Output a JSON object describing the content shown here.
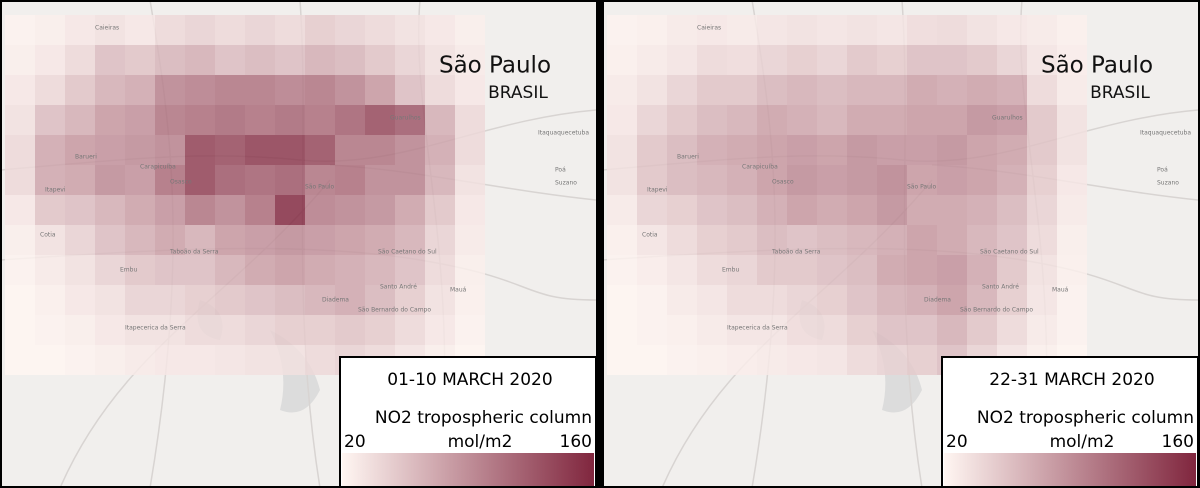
{
  "map_labels": [
    "Barueri",
    "Carapicuíba",
    "Osasco",
    "Itapevi",
    "Cotia",
    "Embu",
    "Taboão da Serra",
    "São Paulo",
    "São Caetano do Sul",
    "Santo André",
    "Diadema",
    "São Bernardo do Campo",
    "Mauá",
    "Poá",
    "Suzano",
    "Itaquaquecetuba",
    "Guarulhos",
    "Itapecerica da Serra",
    "Caieiras"
  ],
  "panels": [
    {
      "place": "São Paulo",
      "country": "BRASIL",
      "period": "01-10 MARCH 2020",
      "legend": {
        "title": "NO2 tropospheric column",
        "unit": "mol/m2",
        "min": 20,
        "max": 160
      },
      "grid": [
        [
          22,
          25,
          30,
          35,
          30,
          40,
          45,
          40,
          45,
          40,
          50,
          45,
          40,
          35,
          30,
          25
        ],
        [
          25,
          30,
          40,
          60,
          55,
          65,
          70,
          60,
          65,
          60,
          70,
          65,
          55,
          45,
          35,
          28
        ],
        [
          30,
          40,
          55,
          70,
          75,
          100,
          105,
          110,
          110,
          105,
          110,
          100,
          85,
          60,
          40,
          30
        ],
        [
          35,
          60,
          70,
          85,
          90,
          110,
          115,
          120,
          115,
          120,
          115,
          125,
          140,
          130,
          70,
          40
        ],
        [
          40,
          75,
          85,
          90,
          95,
          100,
          145,
          140,
          150,
          150,
          140,
          110,
          110,
          100,
          75,
          40
        ],
        [
          40,
          75,
          80,
          95,
          90,
          115,
          145,
          130,
          125,
          130,
          110,
          115,
          100,
          100,
          70,
          35
        ],
        [
          30,
          55,
          60,
          70,
          80,
          90,
          110,
          100,
          115,
          160,
          105,
          100,
          95,
          80,
          55,
          30
        ],
        [
          25,
          35,
          45,
          60,
          70,
          80,
          70,
          85,
          90,
          95,
          90,
          85,
          80,
          70,
          45,
          28
        ],
        [
          22,
          28,
          35,
          45,
          55,
          60,
          60,
          70,
          80,
          85,
          80,
          75,
          70,
          60,
          40,
          25
        ],
        [
          20,
          24,
          30,
          35,
          45,
          45,
          50,
          55,
          60,
          65,
          70,
          75,
          65,
          50,
          35,
          24
        ],
        [
          20,
          22,
          25,
          30,
          35,
          35,
          40,
          40,
          45,
          50,
          50,
          55,
          50,
          40,
          30,
          22
        ],
        [
          20,
          20,
          22,
          25,
          28,
          30,
          30,
          32,
          35,
          35,
          40,
          45,
          40,
          32,
          25,
          20
        ]
      ]
    },
    {
      "place": "São Paulo",
      "country": "BRASIL",
      "period": "22-31 MARCH 2020",
      "legend": {
        "title": "NO2 tropospheric column",
        "unit": "mol/m2",
        "min": 20,
        "max": 160
      },
      "grid": [
        [
          22,
          24,
          28,
          30,
          28,
          32,
          35,
          32,
          35,
          32,
          38,
          40,
          35,
          30,
          28,
          24
        ],
        [
          24,
          28,
          32,
          40,
          38,
          45,
          50,
          45,
          55,
          50,
          60,
          60,
          55,
          45,
          32,
          26
        ],
        [
          28,
          35,
          45,
          55,
          55,
          65,
          70,
          65,
          70,
          70,
          80,
          75,
          80,
          75,
          40,
          28
        ],
        [
          30,
          45,
          55,
          65,
          70,
          80,
          75,
          70,
          80,
          80,
          85,
          85,
          95,
          90,
          55,
          35
        ],
        [
          35,
          55,
          65,
          75,
          80,
          85,
          90,
          85,
          95,
          90,
          90,
          95,
          85,
          80,
          55,
          35
        ],
        [
          35,
          55,
          65,
          70,
          75,
          85,
          95,
          90,
          95,
          100,
          85,
          90,
          85,
          75,
          50,
          30
        ],
        [
          28,
          45,
          50,
          60,
          65,
          75,
          85,
          80,
          85,
          95,
          80,
          80,
          75,
          65,
          45,
          28
        ],
        [
          24,
          32,
          40,
          50,
          55,
          65,
          60,
          65,
          70,
          75,
          85,
          80,
          70,
          60,
          40,
          25
        ],
        [
          22,
          26,
          32,
          40,
          45,
          55,
          55,
          60,
          65,
          80,
          85,
          90,
          75,
          55,
          35,
          24
        ],
        [
          20,
          22,
          28,
          32,
          40,
          40,
          45,
          50,
          60,
          70,
          75,
          85,
          70,
          50,
          32,
          22
        ],
        [
          20,
          22,
          24,
          28,
          32,
          32,
          38,
          40,
          50,
          60,
          60,
          70,
          55,
          40,
          28,
          22
        ],
        [
          20,
          20,
          22,
          24,
          26,
          28,
          30,
          32,
          40,
          45,
          50,
          60,
          45,
          32,
          24,
          20
        ]
      ]
    }
  ]
}
